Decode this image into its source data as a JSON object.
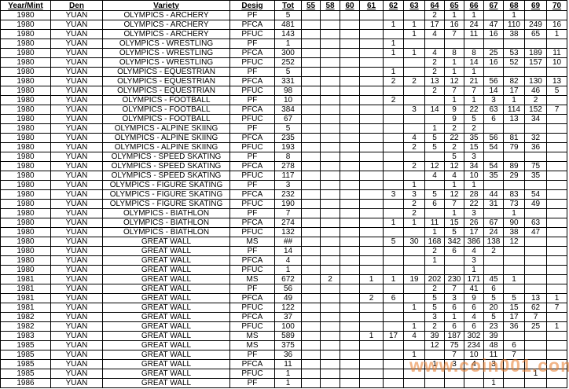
{
  "table": {
    "columns": [
      "Year/Mint",
      "Den",
      "Variety",
      "Desig",
      "Tot",
      "55",
      "58",
      "60",
      "61",
      "62",
      "63",
      "64",
      "65",
      "66",
      "67",
      "68",
      "69",
      "70"
    ],
    "rows": [
      [
        "1980",
        "YUAN",
        "OLYMPICS - ARCHERY",
        "PF",
        "5",
        "",
        "",
        "",
        "",
        "",
        "",
        "2",
        "1",
        "1",
        "",
        "1",
        "",
        ""
      ],
      [
        "1980",
        "YUAN",
        "OLYMPICS - ARCHERY",
        "PFCA",
        "481",
        "",
        "",
        "",
        "",
        "1",
        "1",
        "17",
        "16",
        "24",
        "47",
        "110",
        "249",
        "16"
      ],
      [
        "1980",
        "YUAN",
        "OLYMPICS - ARCHERY",
        "PFUC",
        "143",
        "",
        "",
        "",
        "",
        "",
        "1",
        "4",
        "7",
        "11",
        "16",
        "38",
        "65",
        "1"
      ],
      [
        "1980",
        "YUAN",
        "OLYMPICS - WRESTLING",
        "PF",
        "1",
        "",
        "",
        "",
        "",
        "1",
        "",
        "",
        "",
        "",
        "",
        "",
        "",
        ""
      ],
      [
        "1980",
        "YUAN",
        "OLYMPICS - WRESTLING",
        "PFCA",
        "300",
        "",
        "",
        "",
        "",
        "1",
        "1",
        "4",
        "8",
        "8",
        "25",
        "53",
        "189",
        "11"
      ],
      [
        "1980",
        "YUAN",
        "OLYMPICS - WRESTLING",
        "PFUC",
        "252",
        "",
        "",
        "",
        "",
        "",
        "",
        "2",
        "1",
        "14",
        "16",
        "52",
        "157",
        "10"
      ],
      [
        "1980",
        "YUAN",
        "OLYMPICS - EQUESTRIAN",
        "PF",
        "5",
        "",
        "",
        "",
        "",
        "1",
        "",
        "2",
        "1",
        "1",
        "",
        "",
        "",
        ""
      ],
      [
        "1980",
        "YUAN",
        "OLYMPICS - EQUESTRIAN",
        "PFCA",
        "331",
        "",
        "",
        "",
        "",
        "2",
        "2",
        "13",
        "12",
        "21",
        "56",
        "82",
        "130",
        "13"
      ],
      [
        "1980",
        "YUAN",
        "OLYMPICS - EQUESTRIAN",
        "PFUC",
        "98",
        "",
        "",
        "",
        "",
        "",
        "",
        "2",
        "7",
        "7",
        "14",
        "17",
        "46",
        "5"
      ],
      [
        "1980",
        "YUAN",
        "OLYMPICS - FOOTBALL",
        "PF",
        "10",
        "",
        "",
        "",
        "",
        "2",
        "",
        "",
        "1",
        "1",
        "3",
        "1",
        "2",
        ""
      ],
      [
        "1980",
        "YUAN",
        "OLYMPICS - FOOTBALL",
        "PFCA",
        "384",
        "",
        "",
        "",
        "",
        "",
        "3",
        "14",
        "9",
        "22",
        "63",
        "114",
        "152",
        "7"
      ],
      [
        "1980",
        "YUAN",
        "OLYMPICS - FOOTBALL",
        "PFUC",
        "67",
        "",
        "",
        "",
        "",
        "",
        "",
        "",
        "9",
        "5",
        "6",
        "13",
        "34",
        ""
      ],
      [
        "1980",
        "YUAN",
        "OLYMPICS - ALPINE SKIING",
        "PF",
        "5",
        "",
        "",
        "",
        "",
        "",
        "",
        "1",
        "2",
        "2",
        "",
        "",
        "",
        ""
      ],
      [
        "1980",
        "YUAN",
        "OLYMPICS - ALPINE SKIING",
        "PFCA",
        "235",
        "",
        "",
        "",
        "",
        "",
        "4",
        "5",
        "22",
        "35",
        "56",
        "81",
        "32",
        ""
      ],
      [
        "1980",
        "YUAN",
        "OLYMPICS - ALPINE SKIING",
        "PFUC",
        "193",
        "",
        "",
        "",
        "",
        "",
        "2",
        "5",
        "2",
        "15",
        "54",
        "79",
        "36",
        ""
      ],
      [
        "1980",
        "YUAN",
        "OLYMPICS - SPEED SKATING",
        "PF",
        "8",
        "",
        "",
        "",
        "",
        "",
        "",
        "",
        "5",
        "3",
        "",
        "",
        "",
        ""
      ],
      [
        "1980",
        "YUAN",
        "OLYMPICS - SPEED SKATING",
        "PFCA",
        "278",
        "",
        "",
        "",
        "",
        "",
        "2",
        "12",
        "12",
        "34",
        "54",
        "89",
        "75",
        ""
      ],
      [
        "1980",
        "YUAN",
        "OLYMPICS - SPEED SKATING",
        "PFUC",
        "117",
        "",
        "",
        "",
        "",
        "",
        "",
        "4",
        "4",
        "10",
        "35",
        "29",
        "35",
        ""
      ],
      [
        "1980",
        "YUAN",
        "OLYMPICS - FIGURE SKATING",
        "PF",
        "3",
        "",
        "",
        "",
        "",
        "",
        "1",
        "",
        "1",
        "1",
        "",
        "",
        "",
        ""
      ],
      [
        "1980",
        "YUAN",
        "OLYMPICS - FIGURE SKATING",
        "PFCA",
        "232",
        "",
        "",
        "",
        "",
        "3",
        "3",
        "5",
        "12",
        "28",
        "44",
        "83",
        "54",
        ""
      ],
      [
        "1980",
        "YUAN",
        "OLYMPICS - FIGURE SKATING",
        "PFUC",
        "190",
        "",
        "",
        "",
        "",
        "",
        "2",
        "6",
        "7",
        "22",
        "31",
        "73",
        "49",
        ""
      ],
      [
        "1980",
        "YUAN",
        "OLYMPICS - BIATHLON",
        "PF",
        "7",
        "",
        "",
        "",
        "",
        "",
        "2",
        "",
        "1",
        "3",
        "",
        "1",
        "",
        ""
      ],
      [
        "1980",
        "YUAN",
        "OLYMPICS - BIATHLON",
        "PFCA",
        "274",
        "",
        "",
        "",
        "",
        "1",
        "1",
        "11",
        "15",
        "26",
        "67",
        "90",
        "63",
        ""
      ],
      [
        "1980",
        "YUAN",
        "OLYMPICS - BIATHLON",
        "PFUC",
        "132",
        "",
        "",
        "",
        "",
        "",
        "",
        "1",
        "5",
        "17",
        "24",
        "38",
        "47",
        ""
      ],
      [
        "1980",
        "YUAN",
        "GREAT WALL",
        "MS",
        "##",
        "",
        "",
        "",
        "",
        "5",
        "30",
        "168",
        "342",
        "386",
        "138",
        "12",
        "",
        ""
      ],
      [
        "1980",
        "YUAN",
        "GREAT WALL",
        "PF",
        "14",
        "",
        "",
        "",
        "",
        "",
        "",
        "2",
        "6",
        "4",
        "2",
        "",
        "",
        ""
      ],
      [
        "1980",
        "YUAN",
        "GREAT WALL",
        "PFCA",
        "4",
        "",
        "",
        "",
        "",
        "",
        "",
        "1",
        "",
        "3",
        "",
        "",
        "",
        ""
      ],
      [
        "1980",
        "YUAN",
        "GREAT WALL",
        "PFUC",
        "1",
        "",
        "",
        "",
        "",
        "",
        "",
        "",
        "",
        "1",
        "",
        "",
        "",
        ""
      ],
      [
        "1981",
        "YUAN",
        "GREAT WALL",
        "MS",
        "672",
        "",
        "2",
        "",
        "1",
        "1",
        "19",
        "202",
        "230",
        "171",
        "45",
        "1",
        "",
        ""
      ],
      [
        "1981",
        "YUAN",
        "GREAT WALL",
        "PF",
        "56",
        "",
        "",
        "",
        "",
        "",
        "",
        "2",
        "7",
        "41",
        "6",
        "",
        "",
        ""
      ],
      [
        "1981",
        "YUAN",
        "GREAT WALL",
        "PFCA",
        "49",
        "",
        "",
        "",
        "2",
        "6",
        "",
        "5",
        "3",
        "9",
        "5",
        "5",
        "13",
        "1"
      ],
      [
        "1981",
        "YUAN",
        "GREAT WALL",
        "PFUC",
        "122",
        "",
        "",
        "",
        "",
        "",
        "1",
        "5",
        "6",
        "6",
        "20",
        "15",
        "62",
        "7"
      ],
      [
        "1982",
        "YUAN",
        "GREAT WALL",
        "PFCA",
        "37",
        "",
        "",
        "",
        "",
        "",
        "",
        "3",
        "1",
        "4",
        "5",
        "17",
        "7",
        ""
      ],
      [
        "1982",
        "YUAN",
        "GREAT WALL",
        "PFUC",
        "100",
        "",
        "",
        "",
        "",
        "",
        "1",
        "2",
        "6",
        "6",
        "23",
        "36",
        "25",
        "1"
      ],
      [
        "1983",
        "YUAN",
        "GREAT WALL",
        "MS",
        "589",
        "",
        "",
        "",
        "1",
        "17",
        "4",
        "39",
        "187",
        "302",
        "39",
        "",
        "",
        ""
      ],
      [
        "1985",
        "YUAN",
        "GREAT WALL",
        "MS",
        "375",
        "",
        "",
        "",
        "",
        "",
        "",
        "12",
        "75",
        "234",
        "48",
        "6",
        "",
        ""
      ],
      [
        "1985",
        "YUAN",
        "GREAT WALL",
        "PF",
        "36",
        "",
        "",
        "",
        "",
        "",
        "1",
        "",
        "7",
        "10",
        "11",
        "7",
        "",
        ""
      ],
      [
        "1985",
        "YUAN",
        "GREAT WALL",
        "PFCA",
        "11",
        "",
        "",
        "",
        "",
        "",
        "",
        "1",
        "3",
        "4",
        "3",
        "",
        "",
        ""
      ],
      [
        "1985",
        "YUAN",
        "GREAT WALL",
        "PFUC",
        "1",
        "",
        "",
        "",
        "",
        "",
        "",
        "",
        "",
        "",
        "",
        "",
        "1",
        ""
      ],
      [
        "1986",
        "YUAN",
        "GREAT WALL",
        "PF",
        "1",
        "",
        "",
        "",
        "",
        "",
        "",
        "",
        "",
        "",
        "1",
        "",
        "",
        ""
      ]
    ]
  },
  "watermark": "www.coin001.com",
  "colors": {
    "grid": "#000000",
    "text": "#000000",
    "watermark": "#e87a28",
    "background": "#ffffff"
  }
}
